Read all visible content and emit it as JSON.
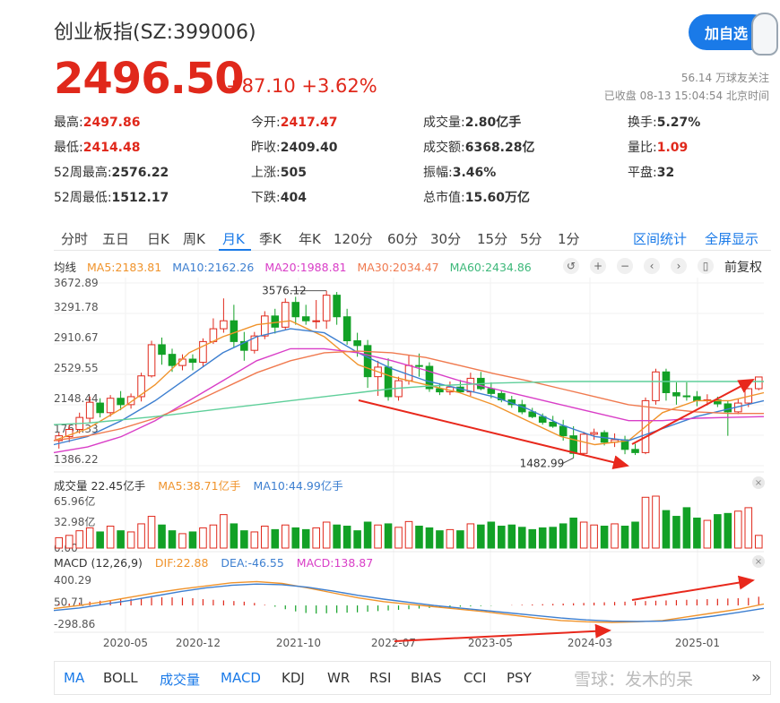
{
  "header": {
    "title": "创业板指(SZ:399006)",
    "follow_btn": "加自选",
    "price": "2496.50",
    "change": "+87.10 +3.62%",
    "followers": "56.14 万球友关注",
    "status": "已收盘 08-13 15:04:54 北京时间"
  },
  "stats": [
    {
      "label": "最高:",
      "value": "2497.86",
      "red": true
    },
    {
      "label": "今开:",
      "value": "2417.47",
      "red": true
    },
    {
      "label": "成交量:",
      "value": "2.80亿手",
      "red": false
    },
    {
      "label": "换手:",
      "value": "5.27%",
      "red": false
    },
    {
      "label": "最低:",
      "value": "2414.48",
      "red": true
    },
    {
      "label": "昨收:",
      "value": "2409.40",
      "red": false
    },
    {
      "label": "成交额:",
      "value": "6368.28亿",
      "red": false
    },
    {
      "label": "量比:",
      "value": "1.09",
      "red": true
    },
    {
      "label": "52周最高:",
      "value": "2576.22",
      "red": false
    },
    {
      "label": "上涨:",
      "value": "505",
      "red": false
    },
    {
      "label": "振幅:",
      "value": "3.46%",
      "red": false
    },
    {
      "label": "平盘:",
      "value": "32",
      "red": false
    },
    {
      "label": "52周最低:",
      "value": "1512.17",
      "red": false
    },
    {
      "label": "下跌:",
      "value": "404",
      "red": false
    },
    {
      "label": "总市值:",
      "value": "15.60万亿",
      "red": false
    }
  ],
  "tabs": [
    "分时",
    "五日",
    "日K",
    "周K",
    "月K",
    "季K",
    "年K",
    "120分",
    "60分",
    "30分",
    "15分",
    "5分",
    "1分"
  ],
  "active_tab": "月K",
  "tab_links": {
    "stats": "区间统计",
    "fullscreen": "全屏显示"
  },
  "ma_legend": {
    "label": "均线",
    "ma5": "MA5:2183.81",
    "ma10": "MA10:2162.26",
    "ma20": "MA20:1988.81",
    "ma30": "MA30:2034.47",
    "ma60": "MA60:2434.86",
    "adjust": "前复权"
  },
  "volume_legend": {
    "label": "成交量 22.45亿手",
    "ma5": "MA5:38.71亿手",
    "ma10": "MA10:44.99亿手"
  },
  "macd_legend": {
    "label": "MACD (12,26,9)",
    "dif": "DIF:22.88",
    "dea": "DEA:-46.55",
    "macd": "MACD:138.87"
  },
  "indicator_tabs": [
    "MA",
    "BOLL",
    "成交量",
    "MACD",
    "KDJ",
    "WR",
    "RSI",
    "BIAS",
    "CCI",
    "PSY"
  ],
  "watermark": "雪球：发木的呆",
  "colors": {
    "up": "#e0281b",
    "down": "#12a126",
    "accent": "#1a7ae8",
    "ma5": "#f0932b",
    "ma10": "#3d7fd0",
    "ma20": "#d93ec7",
    "ma30": "#f07a4f",
    "ma60": "#5fcf9a"
  },
  "chart_data": {
    "type": "candlestick",
    "price_axis": {
      "ticks": [
        "3672.89",
        "3291.78",
        "2910.67",
        "2529.55",
        "2148.44",
        "1767.33",
        "1386.22"
      ],
      "range": [
        1386.22,
        3672.89
      ]
    },
    "annotations": {
      "high": "3576.12",
      "low": "1482.99"
    },
    "x_labels": [
      "2020-05",
      "2020-12",
      "2021-10",
      "2022-07",
      "2023-05",
      "2024-03",
      "2025-01"
    ],
    "candles": [
      {
        "o": 1700,
        "h": 1800,
        "l": 1600,
        "c": 1760
      },
      {
        "o": 1750,
        "h": 1900,
        "l": 1680,
        "c": 1840
      },
      {
        "o": 1840,
        "h": 2050,
        "l": 1790,
        "c": 1990
      },
      {
        "o": 1980,
        "h": 2250,
        "l": 1920,
        "c": 2180
      },
      {
        "o": 2170,
        "h": 2230,
        "l": 1990,
        "c": 2050
      },
      {
        "o": 2050,
        "h": 2270,
        "l": 2000,
        "c": 2230
      },
      {
        "o": 2230,
        "h": 2320,
        "l": 2080,
        "c": 2150
      },
      {
        "o": 2150,
        "h": 2290,
        "l": 2100,
        "c": 2250
      },
      {
        "o": 2250,
        "h": 2550,
        "l": 2190,
        "c": 2510
      },
      {
        "o": 2510,
        "h": 2950,
        "l": 2490,
        "c": 2900
      },
      {
        "o": 2900,
        "h": 2990,
        "l": 2650,
        "c": 2780
      },
      {
        "o": 2780,
        "h": 2850,
        "l": 2560,
        "c": 2640
      },
      {
        "o": 2640,
        "h": 2780,
        "l": 2580,
        "c": 2720
      },
      {
        "o": 2720,
        "h": 2780,
        "l": 2580,
        "c": 2680
      },
      {
        "o": 2680,
        "h": 2980,
        "l": 2630,
        "c": 2940
      },
      {
        "o": 2940,
        "h": 3230,
        "l": 2910,
        "c": 3100
      },
      {
        "o": 3100,
        "h": 3480,
        "l": 3050,
        "c": 3200
      },
      {
        "o": 3200,
        "h": 3400,
        "l": 2860,
        "c": 2940
      },
      {
        "o": 2940,
        "h": 3060,
        "l": 2700,
        "c": 2830
      },
      {
        "o": 2830,
        "h": 3060,
        "l": 2790,
        "c": 3010
      },
      {
        "o": 3010,
        "h": 3320,
        "l": 2970,
        "c": 3260
      },
      {
        "o": 3260,
        "h": 3350,
        "l": 3040,
        "c": 3120
      },
      {
        "o": 3120,
        "h": 3480,
        "l": 3090,
        "c": 3430
      },
      {
        "o": 3430,
        "h": 3500,
        "l": 3150,
        "c": 3250
      },
      {
        "o": 3250,
        "h": 3400,
        "l": 3150,
        "c": 3200
      },
      {
        "o": 3200,
        "h": 3460,
        "l": 3100,
        "c": 3200
      },
      {
        "o": 3200,
        "h": 3576.12,
        "l": 3100,
        "c": 3520
      },
      {
        "o": 3520,
        "h": 3560,
        "l": 3150,
        "c": 3250
      },
      {
        "o": 3250,
        "h": 3350,
        "l": 2900,
        "c": 2950
      },
      {
        "o": 2950,
        "h": 3050,
        "l": 2750,
        "c": 2890
      },
      {
        "o": 2890,
        "h": 2960,
        "l": 2360,
        "c": 2500
      },
      {
        "o": 2500,
        "h": 2700,
        "l": 2260,
        "c": 2620
      },
      {
        "o": 2620,
        "h": 2730,
        "l": 2200,
        "c": 2250
      },
      {
        "o": 2250,
        "h": 2500,
        "l": 2200,
        "c": 2450
      },
      {
        "o": 2450,
        "h": 2770,
        "l": 2400,
        "c": 2640
      },
      {
        "o": 2640,
        "h": 2790,
        "l": 2500,
        "c": 2630
      },
      {
        "o": 2630,
        "h": 2680,
        "l": 2310,
        "c": 2350
      },
      {
        "o": 2350,
        "h": 2420,
        "l": 2270,
        "c": 2310
      },
      {
        "o": 2310,
        "h": 2440,
        "l": 2270,
        "c": 2370
      },
      {
        "o": 2370,
        "h": 2460,
        "l": 2300,
        "c": 2310
      },
      {
        "o": 2310,
        "h": 2550,
        "l": 2260,
        "c": 2480
      },
      {
        "o": 2480,
        "h": 2560,
        "l": 2330,
        "c": 2350
      },
      {
        "o": 2350,
        "h": 2430,
        "l": 2230,
        "c": 2290
      },
      {
        "o": 2290,
        "h": 2330,
        "l": 2180,
        "c": 2210
      },
      {
        "o": 2210,
        "h": 2260,
        "l": 2110,
        "c": 2150
      },
      {
        "o": 2150,
        "h": 2210,
        "l": 2030,
        "c": 2060
      },
      {
        "o": 2060,
        "h": 2110,
        "l": 1980,
        "c": 2000
      },
      {
        "o": 2000,
        "h": 2040,
        "l": 1900,
        "c": 1930
      },
      {
        "o": 1930,
        "h": 2010,
        "l": 1860,
        "c": 1880
      },
      {
        "o": 1880,
        "h": 1960,
        "l": 1700,
        "c": 1760
      },
      {
        "o": 1760,
        "h": 1880,
        "l": 1482.99,
        "c": 1540
      },
      {
        "o": 1540,
        "h": 1810,
        "l": 1520,
        "c": 1780
      },
      {
        "o": 1780,
        "h": 1850,
        "l": 1710,
        "c": 1800
      },
      {
        "o": 1800,
        "h": 1830,
        "l": 1640,
        "c": 1680
      },
      {
        "o": 1680,
        "h": 1790,
        "l": 1620,
        "c": 1710
      },
      {
        "o": 1710,
        "h": 1760,
        "l": 1530,
        "c": 1590
      },
      {
        "o": 1590,
        "h": 1660,
        "l": 1520,
        "c": 1550
      },
      {
        "o": 1550,
        "h": 2240,
        "l": 1530,
        "c": 2200
      },
      {
        "o": 2200,
        "h": 2600,
        "l": 2150,
        "c": 2560
      },
      {
        "o": 2560,
        "h": 2600,
        "l": 2200,
        "c": 2300
      },
      {
        "o": 2300,
        "h": 2430,
        "l": 2150,
        "c": 2260
      },
      {
        "o": 2260,
        "h": 2430,
        "l": 2200,
        "c": 2250
      },
      {
        "o": 2250,
        "h": 2320,
        "l": 2130,
        "c": 2200
      },
      {
        "o": 2200,
        "h": 2280,
        "l": 2140,
        "c": 2210
      },
      {
        "o": 2210,
        "h": 2250,
        "l": 2120,
        "c": 2160
      },
      {
        "o": 2160,
        "h": 2200,
        "l": 1760,
        "c": 2060
      },
      {
        "o": 2060,
        "h": 2220,
        "l": 2030,
        "c": 2170
      },
      {
        "o": 2170,
        "h": 2360,
        "l": 2120,
        "c": 2350
      },
      {
        "o": 2350,
        "h": 2497.86,
        "l": 2330,
        "c": 2496.5
      }
    ],
    "ma_series": [
      {
        "name": "MA5",
        "start": 1700,
        "points": [
          1700,
          1850,
          2100,
          2400,
          2800,
          3000,
          3150,
          3200,
          3000,
          2650,
          2500,
          2400,
          2300,
          2150,
          1950,
          1750,
          1650,
          1700,
          2050,
          2200,
          2200,
          2300
        ]
      },
      {
        "name": "MA10",
        "start": 1650,
        "points": [
          1650,
          1750,
          1950,
          2200,
          2500,
          2800,
          3000,
          3100,
          3050,
          2800,
          2600,
          2450,
          2350,
          2250,
          2100,
          1900,
          1750,
          1700,
          1850,
          2000,
          2100,
          2200
        ]
      },
      {
        "name": "MA20",
        "start": 1550,
        "points": [
          1550,
          1620,
          1750,
          1950,
          2200,
          2450,
          2700,
          2850,
          2850,
          2800,
          2700,
          2580,
          2450,
          2350,
          2250,
          2150,
          2050,
          1950,
          1950,
          1980,
          1990,
          2000
        ]
      },
      {
        "name": "MA30",
        "start": 1700,
        "points": [
          1700,
          1760,
          1850,
          1980,
          2150,
          2350,
          2550,
          2700,
          2800,
          2820,
          2800,
          2740,
          2640,
          2540,
          2450,
          2350,
          2250,
          2150,
          2100,
          2060,
          2040,
          2040
        ]
      },
      {
        "name": "MA60",
        "start": 1900,
        "points": [
          1900,
          1920,
          1960,
          2000,
          2050,
          2100,
          2150,
          2200,
          2250,
          2300,
          2350,
          2380,
          2400,
          2420,
          2430,
          2440,
          2440,
          2440,
          2440,
          2440,
          2440,
          2440
        ]
      }
    ],
    "volume_axis": {
      "ticks": [
        "65.96亿",
        "32.98亿",
        "0.00"
      ],
      "max": 65.96
    },
    "volume": [
      18,
      22,
      30,
      35,
      28,
      38,
      30,
      28,
      42,
      55,
      40,
      30,
      25,
      28,
      35,
      40,
      58,
      42,
      30,
      28,
      38,
      32,
      40,
      35,
      32,
      35,
      45,
      40,
      38,
      30,
      45,
      40,
      42,
      36,
      46,
      38,
      35,
      30,
      32,
      30,
      42,
      40,
      45,
      38,
      40,
      36,
      32,
      35,
      36,
      42,
      52,
      45,
      40,
      38,
      42,
      38,
      45,
      88,
      90,
      65,
      55,
      70,
      52,
      48,
      58,
      60,
      64,
      70,
      22
    ],
    "macd_axis": {
      "ticks": [
        "400.29",
        "50.71",
        "-298.86"
      ],
      "range": [
        -298.86,
        400.29
      ]
    },
    "macd_hist": [
      20,
      30,
      45,
      60,
      75,
      85,
      95,
      105,
      115,
      125,
      130,
      128,
      125,
      115,
      100,
      90,
      80,
      70,
      60,
      40,
      10,
      -20,
      -60,
      -95,
      -120,
      -130,
      -125,
      -120,
      -115,
      -110,
      -100,
      -90,
      -80,
      -70,
      -60,
      -50,
      -40,
      -30,
      -25,
      -20,
      -15,
      -10,
      -5,
      0,
      5,
      10,
      15,
      20,
      25,
      30,
      35,
      40,
      45,
      50,
      55,
      60,
      65,
      70,
      75,
      80,
      85,
      90,
      95,
      100,
      105,
      110,
      115,
      120,
      138.87
    ],
    "dif_points": [
      -50,
      0,
      60,
      130,
      200,
      260,
      310,
      360,
      380,
      350,
      280,
      200,
      120,
      60,
      20,
      -20,
      -60,
      -100,
      -150,
      -200,
      -240,
      -260,
      -270,
      -260,
      -240,
      -180,
      -120,
      -60,
      22.88
    ],
    "dea_points": [
      -80,
      -40,
      20,
      80,
      150,
      220,
      280,
      320,
      340,
      330,
      290,
      230,
      160,
      100,
      50,
      0,
      -40,
      -80,
      -120,
      -160,
      -200,
      -230,
      -250,
      -255,
      -250,
      -220,
      -170,
      -110,
      -46.55
    ]
  }
}
